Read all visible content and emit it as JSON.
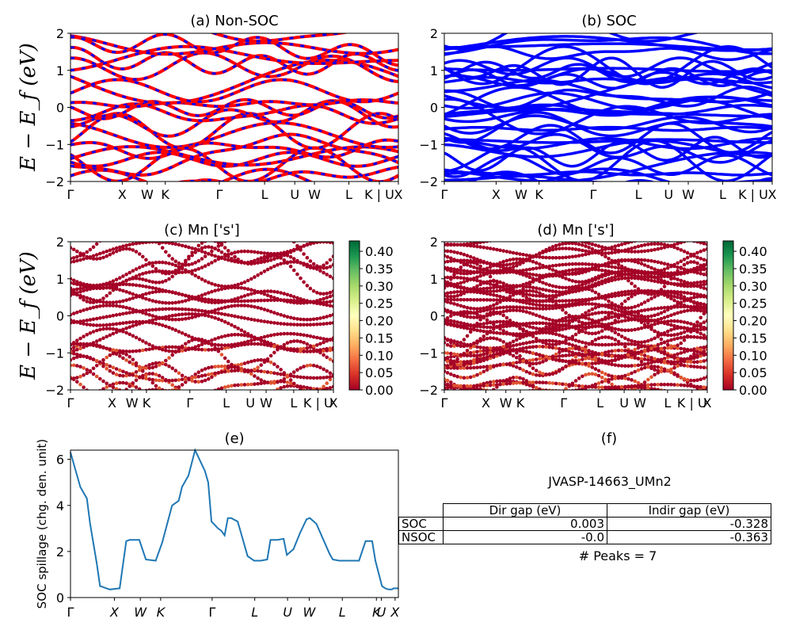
{
  "ylabel": "E − E_f (eV)",
  "band_panels": [
    {
      "title": "(a) Non-SOC",
      "ylim": [
        -2,
        2
      ],
      "yticks": [
        "−2",
        "−1",
        "0",
        "1",
        "2"
      ],
      "xticks": [
        "Γ",
        "X",
        "W",
        "K",
        "Γ",
        "L",
        "U",
        "W",
        "L",
        "K | U",
        "X"
      ],
      "colors": [
        "#ff0000",
        "#0000ff"
      ]
    },
    {
      "title": "(b) SOC",
      "ylim": [
        -2,
        2
      ],
      "yticks": [
        "−2",
        "−1",
        "0",
        "1",
        "2"
      ],
      "xticks": [
        "Γ",
        "X",
        "W",
        "K",
        "Γ",
        "L",
        "U",
        "W",
        "L",
        "K | U",
        "X"
      ],
      "colors": [
        "#0000ff"
      ]
    },
    {
      "title": "(c)  Mn ['s']",
      "ylim": [
        -2,
        2
      ],
      "yticks": [
        "−2",
        "−1",
        "0",
        "1",
        "2"
      ],
      "xticks": [
        "Γ",
        "X",
        "W",
        "K",
        "Γ",
        "L",
        "U",
        "W",
        "L",
        "K | U",
        "X"
      ],
      "colors": [
        "#a50026"
      ]
    },
    {
      "title": "(d) Mn ['s']",
      "ylim": [
        -2,
        2
      ],
      "yticks": [
        "−2",
        "−1",
        "0",
        "1",
        "2"
      ],
      "xticks": [
        "Γ",
        "X",
        "W",
        "K",
        "Γ",
        "L",
        "U",
        "W",
        "L",
        "K | U",
        "X"
      ],
      "colors": [
        "#a50026"
      ]
    }
  ],
  "colorbar": {
    "cmap": "RdYlGn",
    "ticks": [
      "0.00",
      "0.05",
      "0.10",
      "0.15",
      "0.20",
      "0.25",
      "0.30",
      "0.35",
      "0.40"
    ],
    "range": [
      0,
      0.43
    ]
  },
  "chart_data": [
    {
      "type": "line",
      "title": "(e)",
      "ylabel": "SOC spillage (chg. den. unit)",
      "ylim": [
        0,
        6.4
      ],
      "yticks": [
        "0",
        "2",
        "4",
        "6"
      ],
      "xticks": [
        "Γ",
        "X",
        "W",
        "K",
        "Γ",
        "L",
        "U",
        "W",
        "L",
        "K",
        "U",
        "X"
      ],
      "color": "#1f77b4",
      "x": [
        0,
        0.02,
        0.03,
        0.05,
        0.06,
        0.08,
        0.09,
        0.11,
        0.12,
        0.15,
        0.17,
        0.18,
        0.2,
        0.21,
        0.23,
        0.26,
        0.28,
        0.31,
        0.33,
        0.34,
        0.36,
        0.38,
        0.41,
        0.42,
        0.43,
        0.45,
        0.46,
        0.47,
        0.48,
        0.49,
        0.51,
        0.52,
        0.54,
        0.56,
        0.58,
        0.6,
        0.61,
        0.62,
        0.63,
        0.65,
        0.66,
        0.68,
        0.7,
        0.72,
        0.73,
        0.75,
        0.79,
        0.8,
        0.82,
        0.83,
        0.86,
        0.88,
        0.9,
        0.92,
        0.93,
        0.95,
        0.96,
        0.97,
        0.98,
        0.985,
        1.0
      ],
      "y": [
        6.3,
        5.3,
        4.8,
        4.3,
        3.2,
        1.5,
        0.5,
        0.4,
        0.35,
        0.4,
        2.45,
        2.5,
        2.5,
        2.5,
        1.65,
        1.6,
        2.4,
        4.0,
        4.2,
        4.8,
        5.3,
        6.4,
        5.5,
        5.0,
        3.3,
        3.0,
        2.9,
        2.7,
        3.45,
        3.45,
        3.3,
        2.8,
        1.8,
        1.6,
        1.6,
        1.65,
        2.5,
        2.5,
        2.5,
        2.55,
        1.85,
        2.1,
        2.8,
        3.4,
        3.45,
        3.2,
        1.9,
        1.65,
        1.6,
        1.6,
        1.6,
        1.6,
        2.45,
        2.45,
        1.6,
        0.5,
        0.4,
        0.35,
        0.35,
        0.4,
        0.4
      ]
    },
    {
      "type": "table",
      "title": "(f)",
      "name": "JVASP-14663_UMn2",
      "columns": [
        "",
        "Dir gap (eV)",
        "Indir gap (eV)"
      ],
      "rows": [
        [
          "SOC",
          "0.003",
          "-0.328"
        ],
        [
          "NSOC",
          "-0.0",
          "-0.363"
        ]
      ],
      "note": "# Peaks = 7"
    }
  ]
}
